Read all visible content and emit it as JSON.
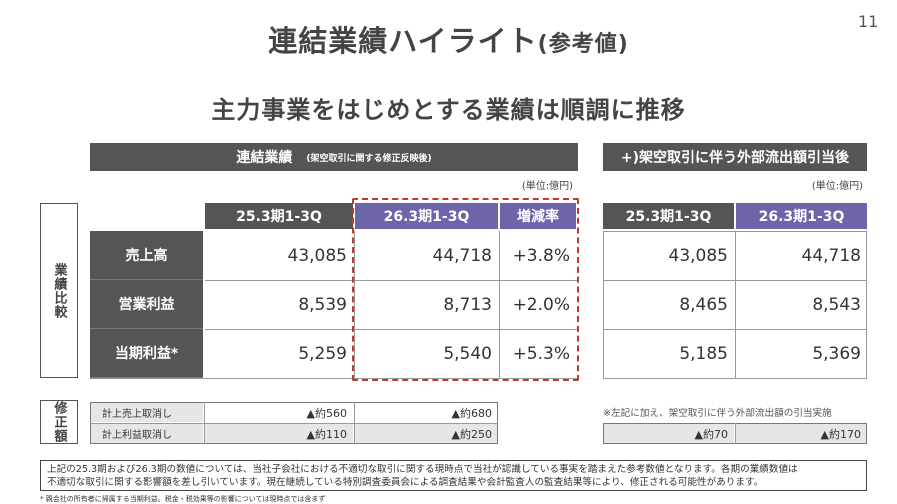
{
  "page_number": "11",
  "title": {
    "main": "連結業績ハイライト",
    "suffix": "(参考値)"
  },
  "subtitle": "主力事業をはじめとする業績は順調に推移",
  "left_table": {
    "header": "連結業績",
    "header_note": "(架空取引に関する修正反映後)",
    "unit": "(単位:億円)",
    "columns": [
      "25.3期1-3Q",
      "26.3期1-3Q",
      "増減率"
    ],
    "rows": [
      {
        "label": "売上高",
        "v1": "43,085",
        "v2": "44,718",
        "chg": "+3.8%"
      },
      {
        "label": "営業利益",
        "v1": "8,539",
        "v2": "8,713",
        "chg": "+2.0%"
      },
      {
        "label": "当期利益*",
        "v1": "5,259",
        "v2": "5,540",
        "chg": "+5.3%"
      }
    ]
  },
  "right_table": {
    "header": "+)架空取引に伴う外部流出額引当後",
    "unit": "(単位:億円)",
    "columns": [
      "25.3期1-3Q",
      "26.3期1-3Q"
    ],
    "rows": [
      {
        "v1": "43,085",
        "v2": "44,718"
      },
      {
        "v1": "8,465",
        "v2": "8,543"
      },
      {
        "v1": "5,185",
        "v2": "5,369"
      }
    ]
  },
  "side_labels": {
    "performance": "業績比較",
    "adjustment": "修正額"
  },
  "adjustments": {
    "rows": [
      {
        "label": "計上売上取消し",
        "v1": "▲約560",
        "v2": "▲約680"
      },
      {
        "label": "計上利益取消し",
        "v1": "▲約110",
        "v2": "▲約250"
      }
    ],
    "right_note": "※左記に加え、架空取引に伴う外部流出額の引当実施",
    "right_values": {
      "v1": "▲約70",
      "v2": "▲約170"
    }
  },
  "note_box": {
    "line1": "上記の25.3期および26.3期の数値については、当社子会社における不適切な取引に関する現時点で当社が認識している事実を踏まえた参考数値となります。各期の業績数値は",
    "line2": "不適切な取引に関する影響額を差し引いています。現在継続している特別調査委員会による調査結果や会計監査人の監査結果等により、修正される可能性があります。"
  },
  "footnote": "* 親会社の所有者に帰属する当期利益。税金・税効果等の影響については現時点では含まず",
  "colors": {
    "dark_header": "#555555",
    "purple_header": "#6d64a9",
    "dashed_border": "#c0392b"
  }
}
